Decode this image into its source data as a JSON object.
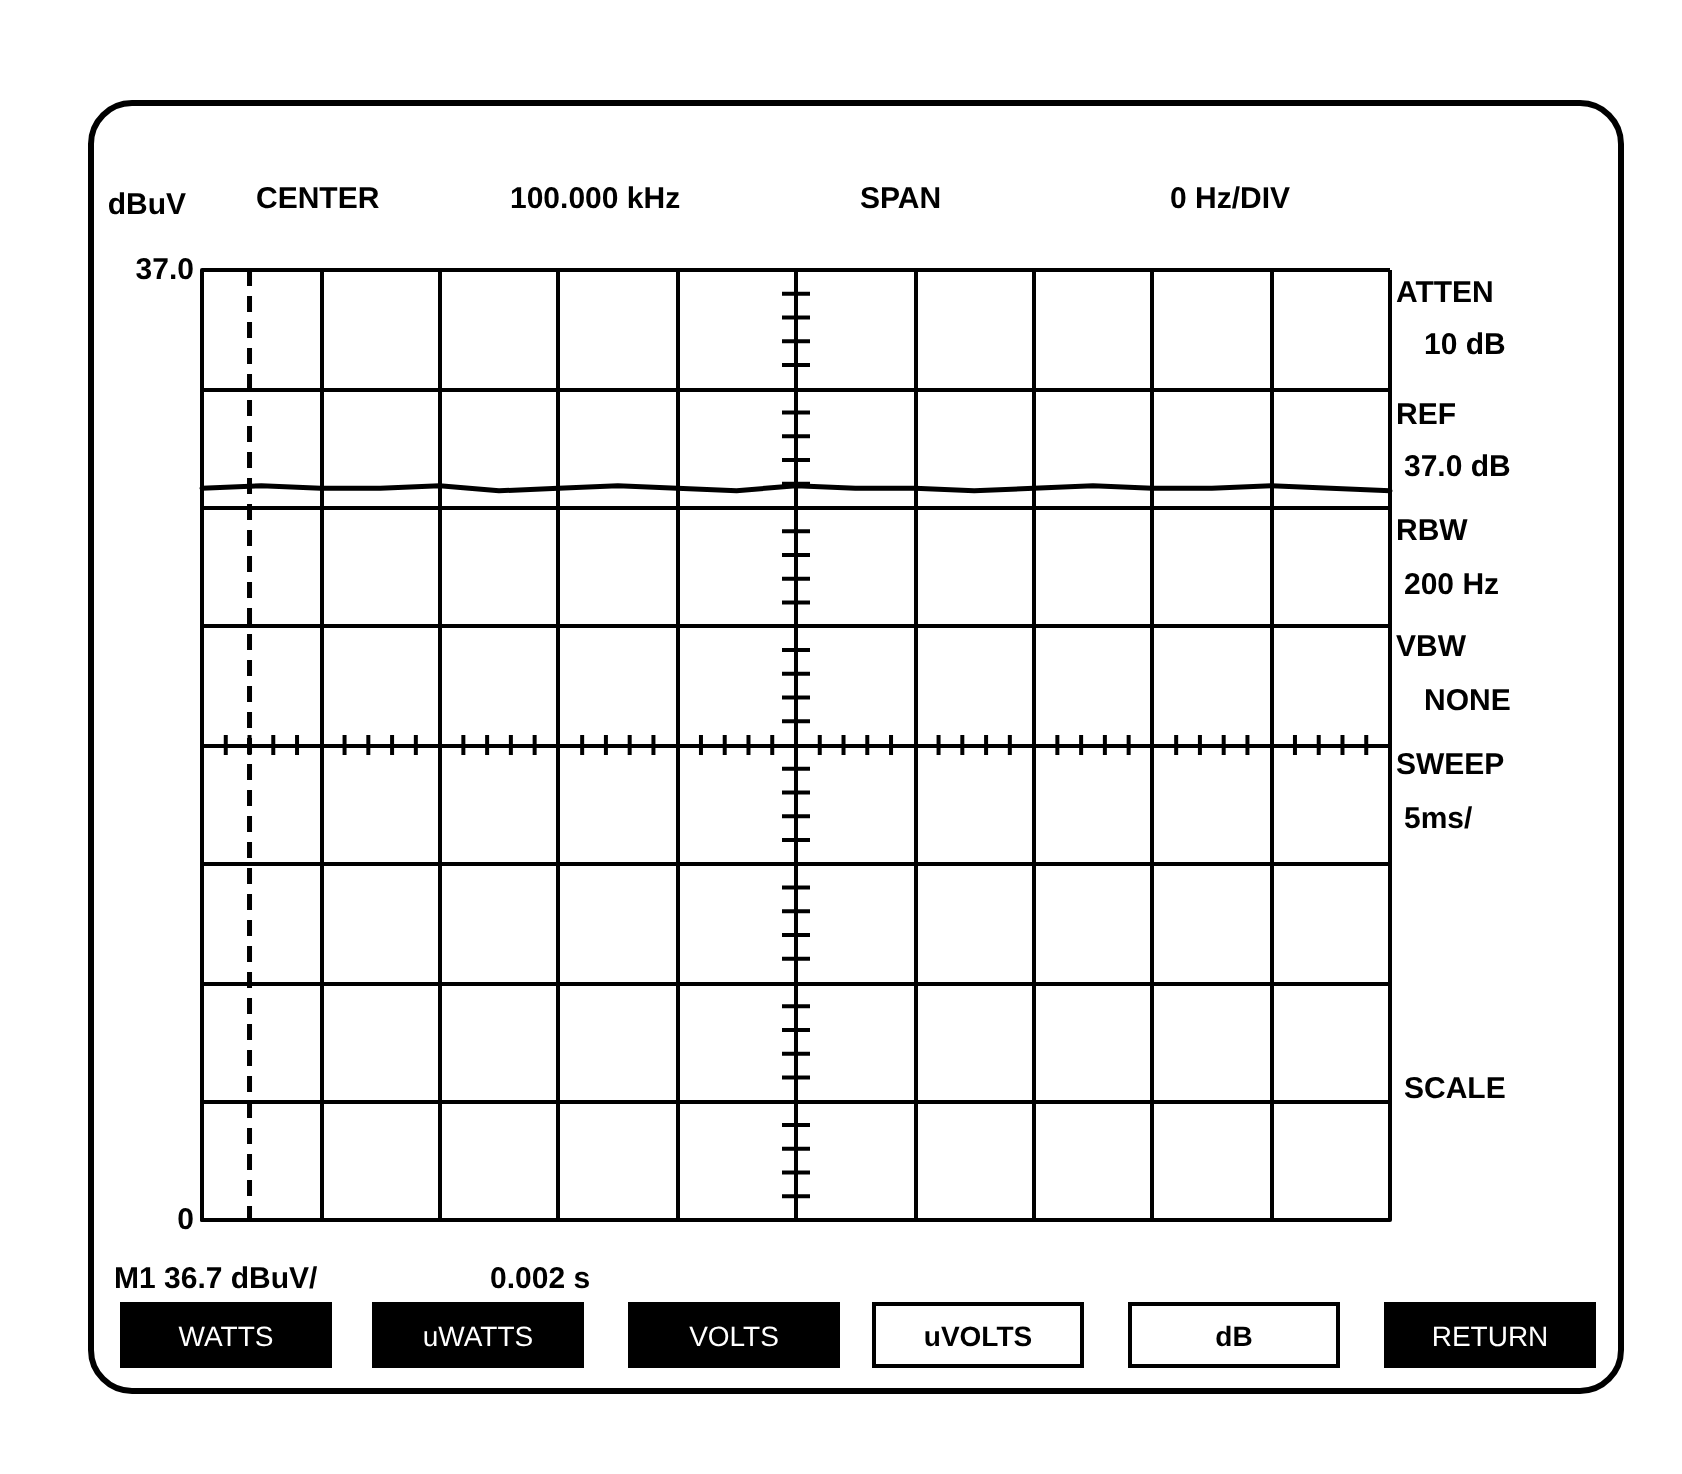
{
  "chart_data": {
    "type": "line",
    "ylabel": "dBuV",
    "annotations": [
      "CENTER",
      "100.000 kHz",
      "SPAN",
      "0 Hz/DIV",
      "ATTEN",
      "10  dB",
      "REF",
      "37.0 dB",
      "RBW",
      "200  Hz",
      "VBW",
      "NONE",
      "SWEEP",
      "5ms/",
      "SCALE",
      "M1   36.7 dBuV/",
      "0.002 s",
      "WATTS",
      "uWATTS",
      "VOLTS",
      "uVOLTS",
      "dB",
      "RETURN"
    ],
    "categories": [
      null,
      null,
      null,
      null,
      null,
      null,
      null,
      null,
      null,
      null,
      null,
      null,
      null,
      null,
      null,
      null,
      null,
      null,
      null,
      null,
      null
    ],
    "series": [
      {
        "color": "#000000",
        "values": [
          28.5,
          28.6,
          28.5,
          28.5,
          28.6,
          28.4,
          28.5,
          28.6,
          28.5,
          28.4,
          28.6,
          28.5,
          28.5,
          28.4,
          28.5,
          28.6,
          28.5,
          28.5,
          28.6,
          28.5,
          28.4
        ]
      }
    ],
    "ylim": [
      0,
      37
    ],
    "yticks": [
      0,
      {
        "value": 4.625,
        "label": null
      },
      {
        "value": 9.25,
        "label": null
      },
      {
        "value": 13.875,
        "label": null
      },
      {
        "value": 18.5,
        "label": null
      },
      {
        "value": 23.125,
        "label": null
      },
      {
        "value": 27.75,
        "label": null
      },
      {
        "value": 32.375,
        "label": null
      },
      {
        "value": 37,
        "label": "37.0"
      }
    ],
    "grid": true,
    "marker": "none",
    "line_style": "solid",
    "tick_labels": "y"
  }
}
